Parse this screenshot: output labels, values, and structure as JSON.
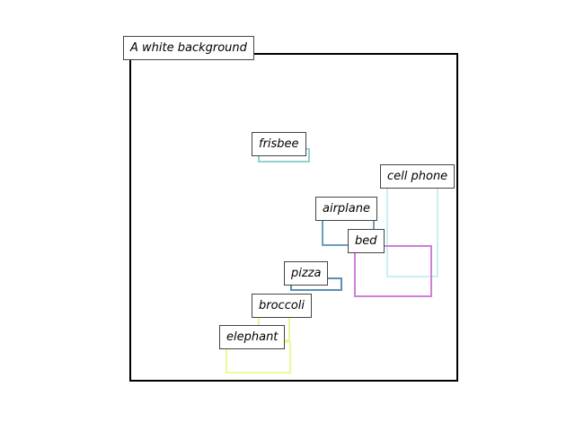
{
  "title": "A white background",
  "objects": [
    {
      "id": "frisbee",
      "label": "frisbee",
      "color": "#8fd3cf"
    },
    {
      "id": "cell-phone",
      "label": "cell phone",
      "color": "#c8f0f4"
    },
    {
      "id": "airplane",
      "label": "airplane",
      "color": "#6a9fbf"
    },
    {
      "id": "bed",
      "label": "bed",
      "color": "#d07fd8"
    },
    {
      "id": "pizza",
      "label": "pizza",
      "color": "#5a90b4"
    },
    {
      "id": "broccoli",
      "label": "broccoli",
      "color": "#eaf59a"
    },
    {
      "id": "elephant",
      "label": "elephant",
      "color": "#eef79a"
    }
  ]
}
